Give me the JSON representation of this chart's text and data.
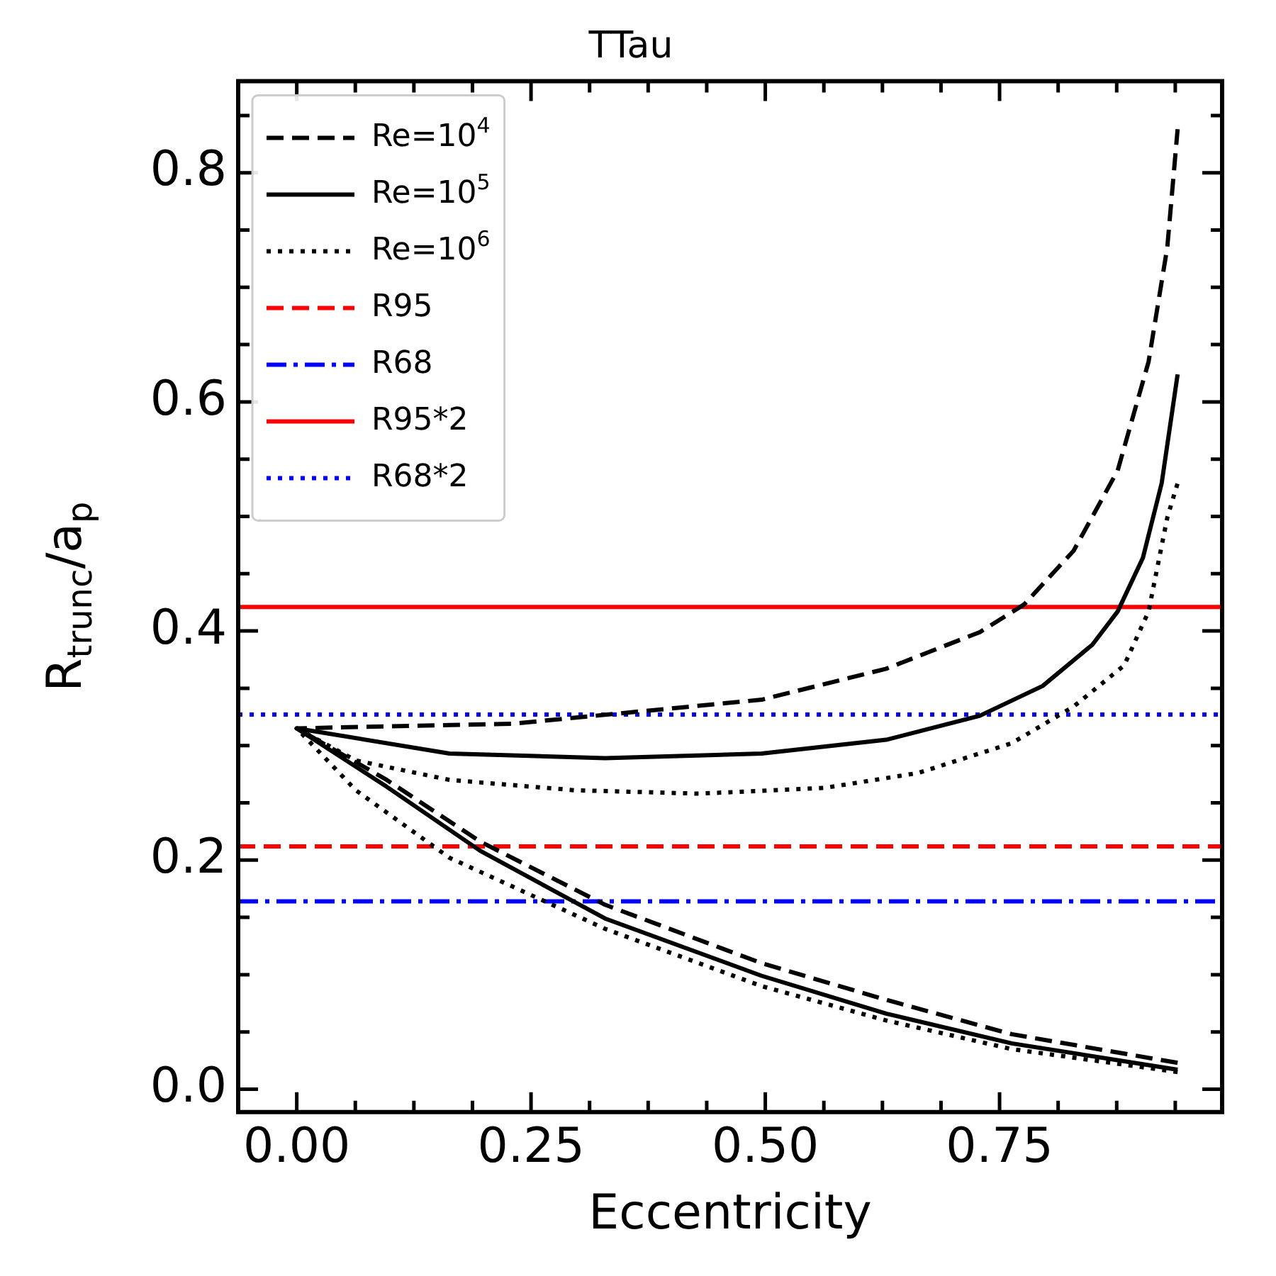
{
  "chart_data": {
    "type": "line",
    "title": "TTau",
    "xlabel": "Eccentricity",
    "ylabel": "R$_{trunc}$/a$_{p}$",
    "xlim": [
      -0.0625,
      0.9875
    ],
    "ylim": [
      -0.02,
      0.88
    ],
    "xticks": [
      {
        "value": 0,
        "label": "0.00"
      },
      {
        "value": 0.0625,
        "label": null
      },
      {
        "value": 0.125,
        "label": null
      },
      {
        "value": 0.1875,
        "label": null
      },
      {
        "value": 0.25,
        "label": "0.25"
      },
      {
        "value": 0.3125,
        "label": null
      },
      {
        "value": 0.375,
        "label": null
      },
      {
        "value": 0.4375,
        "label": null
      },
      {
        "value": 0.5,
        "label": "0.50"
      },
      {
        "value": 0.5625,
        "label": null
      },
      {
        "value": 0.625,
        "label": null
      },
      {
        "value": 0.6875,
        "label": null
      },
      {
        "value": 0.75,
        "label": "0.75"
      },
      {
        "value": 0.8125,
        "label": null
      },
      {
        "value": 0.875,
        "label": null
      },
      {
        "value": 0.9375,
        "label": null
      }
    ],
    "yticks": [
      {
        "value": 0,
        "label": "0.0"
      },
      {
        "value": 0.05,
        "label": null
      },
      {
        "value": 0.1,
        "label": null
      },
      {
        "value": 0.15,
        "label": null
      },
      {
        "value": 0.2,
        "label": "0.2"
      },
      {
        "value": 0.25,
        "label": null
      },
      {
        "value": 0.3,
        "label": null
      },
      {
        "value": 0.35,
        "label": null
      },
      {
        "value": 0.4,
        "label": "0.4"
      },
      {
        "value": 0.45,
        "label": null
      },
      {
        "value": 0.5,
        "label": null
      },
      {
        "value": 0.55,
        "label": null
      },
      {
        "value": 0.6,
        "label": "0.6"
      },
      {
        "value": 0.65,
        "label": null
      },
      {
        "value": 0.7,
        "label": null
      },
      {
        "value": 0.75,
        "label": null
      },
      {
        "value": 0.8,
        "label": "0.8"
      },
      {
        "value": 0.85,
        "label": null
      }
    ],
    "grid": false,
    "legend": "top left",
    "marker": "none",
    "series": [
      {
        "name": "Re=10$^{4}$",
        "color": "#000000",
        "line_style": "dashed",
        "x": [
          0.94,
          0.763,
          0.629,
          0.496,
          0.329,
          0.196,
          0.096,
          0,
          0.23,
          0.496,
          0.629,
          0.729,
          0.776,
          0.829,
          0.876,
          0.909,
          0.929,
          0.94
        ],
        "values": [
          0.023,
          0.048,
          0.078,
          0.11,
          0.161,
          0.216,
          0.27,
          0.315,
          0.319,
          0.34,
          0.367,
          0.399,
          0.423,
          0.47,
          0.54,
          0.635,
          0.735,
          0.838
        ]
      },
      {
        "name": "Re=10$^{5}$",
        "color": "#000000",
        "line_style": "solid",
        "x": [
          0.94,
          0.763,
          0.629,
          0.496,
          0.329,
          0.196,
          0.096,
          0,
          0.163,
          0.329,
          0.496,
          0.629,
          0.729,
          0.796,
          0.849,
          0.876,
          0.903,
          0.923,
          0.94
        ],
        "values": [
          0.017,
          0.04,
          0.066,
          0.099,
          0.149,
          0.208,
          0.264,
          0.315,
          0.293,
          0.289,
          0.293,
          0.305,
          0.326,
          0.352,
          0.388,
          0.417,
          0.464,
          0.529,
          0.624
        ]
      },
      {
        "name": "Re=10$^{6}$",
        "color": "#000000",
        "line_style": "dotted",
        "x": [
          0.94,
          0.763,
          0.629,
          0.496,
          0.329,
          0.163,
          0.063,
          0,
          0.063,
          0.163,
          0.296,
          0.429,
          0.563,
          0.663,
          0.763,
          0.829,
          0.883,
          0.909,
          0.929,
          0.94
        ],
        "values": [
          0.015,
          0.035,
          0.06,
          0.09,
          0.14,
          0.202,
          0.261,
          0.315,
          0.287,
          0.27,
          0.261,
          0.258,
          0.263,
          0.276,
          0.302,
          0.334,
          0.37,
          0.417,
          0.499,
          0.529
        ]
      }
    ],
    "ref_lines": [
      {
        "axis": "y",
        "value": 0.212,
        "label": "R95",
        "color": "#ff0000",
        "line_style": "dashed"
      },
      {
        "axis": "y",
        "value": 0.164,
        "label": "R68",
        "color": "#0000ff",
        "line_style": "dashdot"
      },
      {
        "axis": "y",
        "value": 0.421,
        "label": "R95*2",
        "color": "#ff0000",
        "line_style": "solid"
      },
      {
        "axis": "y",
        "value": 0.327,
        "label": "R68*2",
        "color": "#0000ff",
        "line_style": "dotted"
      }
    ]
  }
}
